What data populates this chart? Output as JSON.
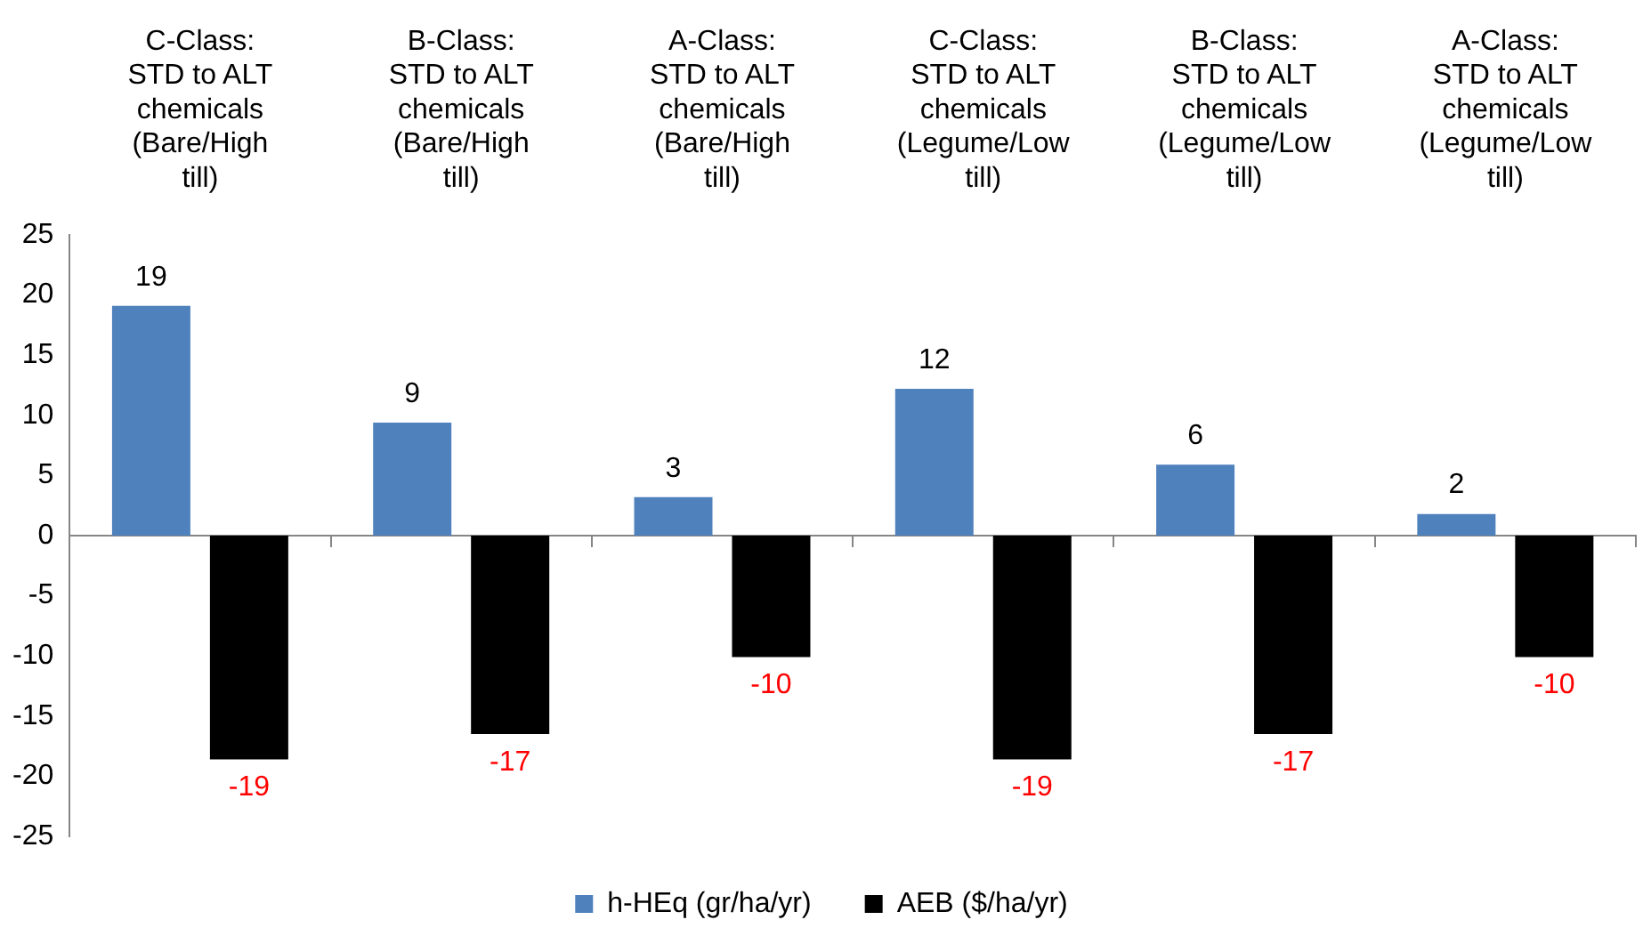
{
  "chart_data": {
    "type": "bar",
    "categories": [
      "C-Class: STD to ALT chemicals (Bare/High till)",
      "B-Class: STD to ALT chemicals (Bare/High till)",
      "A-Class: STD to ALT chemicals (Bare/High till)",
      "C-Class: STD to ALT chemicals (Legume/Low till)",
      "B-Class: STD to ALT chemicals (Legume/Low till)",
      "A-Class: STD to ALT chemicals (Legume/Low till)"
    ],
    "series": [
      {
        "name": "h-HEq (gr/ha/yr)",
        "color": "#4f81bd",
        "values": [
          19.1,
          9.4,
          3.2,
          12.2,
          5.9,
          1.8
        ],
        "value_labels": [
          "19",
          "9",
          "3",
          "12",
          "6",
          "2"
        ]
      },
      {
        "name": "AEB ($/ha/yr)",
        "color": "#000000",
        "values": [
          -18.6,
          -16.5,
          -10.1,
          -18.6,
          -16.5,
          -10.1
        ],
        "value_labels": [
          "-19",
          "-17",
          "-10",
          "-19",
          "-17",
          "-10"
        ]
      }
    ],
    "ylim": [
      -25,
      25
    ],
    "yticks": [
      -25,
      -20,
      -15,
      -10,
      -5,
      0,
      5,
      10,
      15,
      20,
      25
    ],
    "legend": "bottom"
  }
}
